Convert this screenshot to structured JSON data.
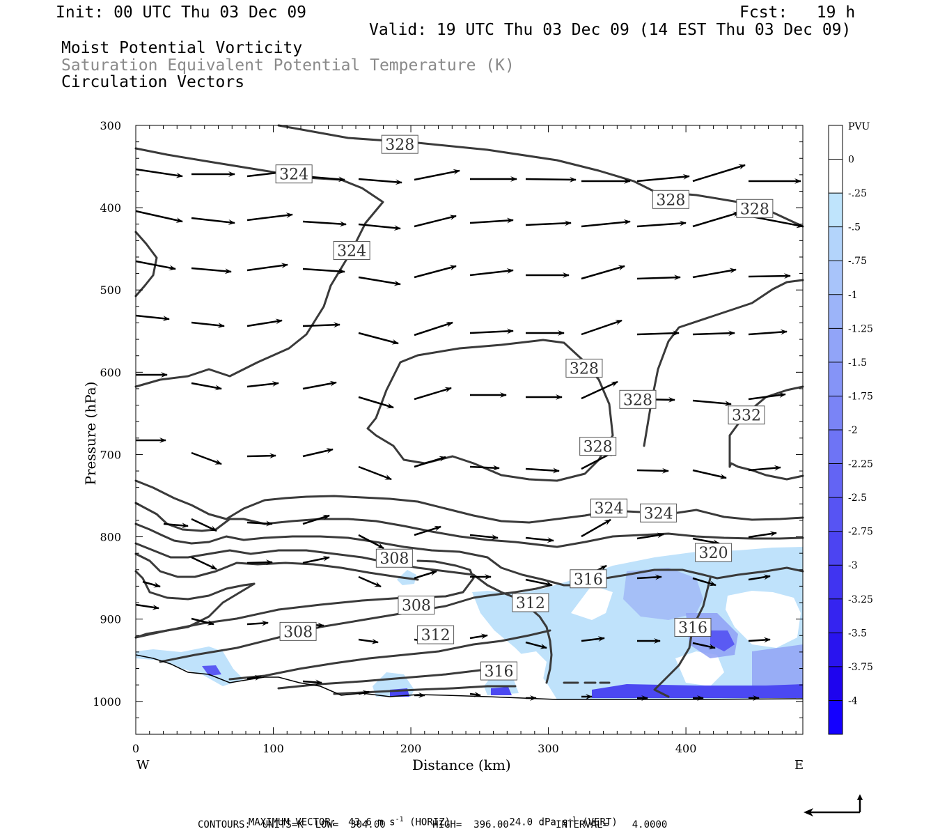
{
  "header": {
    "init": "Init: 00 UTC Thu 03 Dec 09",
    "fcst": "Fcst:   19 h",
    "valid": "Valid: 19 UTC Thu 03 Dec 09 (14 EST Thu 03 Dec 09)",
    "field1": "Moist Potential Vorticity",
    "field2": "Saturation Equivalent Potential Temperature (K)",
    "field3": "Circulation Vectors"
  },
  "footer": {
    "max_vector_label": "MAXIMUM VECTOR:",
    "max_vector_horiz": "43.6 m s",
    "horiz_unit": "(HORIZ)",
    "max_vector_vert": "24.0 dPa s",
    "vert_unit": "(VERT)",
    "superscript": "-1",
    "contours": "CONTOURS:  UNITS=K  LOW=  304.00        HIGH=  396.00        INTERVAL=    4.0000"
  },
  "colors": {
    "contour": "#3a3a3a",
    "pv_fill_light": "#bfe2fb",
    "pv_fill_mid": "#8ea0f5",
    "pv_fill_deep": "#3a3af2"
  },
  "chart_data": {
    "type": "cross-section",
    "xlabel": "Distance (km)",
    "ylabel": "Pressure (hPa)",
    "x_end_labels": [
      "W",
      "E"
    ],
    "xlim": [
      0,
      485
    ],
    "ylim": [
      300,
      1040
    ],
    "y_axis_inverted": true,
    "x_ticks": [
      0,
      100,
      200,
      300,
      400
    ],
    "y_ticks": [
      300,
      400,
      500,
      600,
      700,
      800,
      900,
      1000
    ],
    "colorbar": {
      "title": "PVU",
      "labels": [
        "0",
        "-.25",
        "-.5",
        "-.75",
        "-1",
        "-1.25",
        "-1.5",
        "-1.75",
        "-2",
        "-2.25",
        "-2.5",
        "-2.75",
        "-3",
        "-3.25",
        "-3.5",
        "-3.75",
        "-4"
      ],
      "colors": [
        "#ffffff",
        "#ffffff",
        "#bfe4fc",
        "#b3d4fb",
        "#a8c4fa",
        "#9cb4f9",
        "#91a4f8",
        "#8594f7",
        "#7a84f6",
        "#6e74f5",
        "#6364f4",
        "#5754f3",
        "#4c44f2",
        "#4034f1",
        "#3524f0",
        "#2914ef",
        "#1e04ee",
        "#1400ff"
      ]
    },
    "contour_labels": [
      {
        "text": "328",
        "x": 192,
        "p": 323
      },
      {
        "text": "324",
        "x": 115,
        "p": 359
      },
      {
        "text": "324",
        "x": 157,
        "p": 452
      },
      {
        "text": "328",
        "x": 389,
        "p": 390
      },
      {
        "text": "328",
        "x": 450,
        "p": 401
      },
      {
        "text": "328",
        "x": 326,
        "p": 595
      },
      {
        "text": "328",
        "x": 365,
        "p": 633
      },
      {
        "text": "328",
        "x": 336,
        "p": 690
      },
      {
        "text": "332",
        "x": 444,
        "p": 652
      },
      {
        "text": "324",
        "x": 344,
        "p": 765
      },
      {
        "text": "324",
        "x": 380,
        "p": 771
      },
      {
        "text": "320",
        "x": 420,
        "p": 819
      },
      {
        "text": "308",
        "x": 188,
        "p": 826
      },
      {
        "text": "316",
        "x": 329,
        "p": 851
      },
      {
        "text": "312",
        "x": 287,
        "p": 880
      },
      {
        "text": "308",
        "x": 204,
        "p": 883
      },
      {
        "text": "316",
        "x": 405,
        "p": 910
      },
      {
        "text": "308",
        "x": 118,
        "p": 915
      },
      {
        "text": "312",
        "x": 218,
        "p": 919
      },
      {
        "text": "316",
        "x": 264,
        "p": 963
      }
    ]
  }
}
